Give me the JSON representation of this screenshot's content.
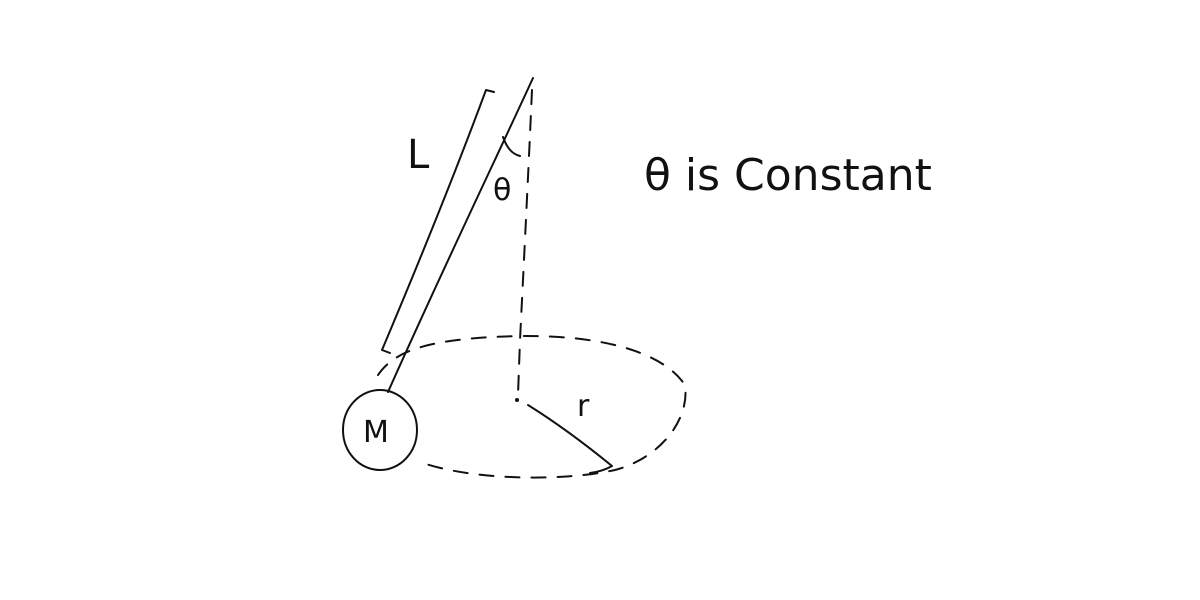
{
  "diagram": {
    "labels": {
      "length": "L",
      "angle": "θ",
      "mass": "M",
      "radius": "r",
      "note": "θ is Constant"
    },
    "colors": {
      "ink": "#111111",
      "background": "#ffffff"
    }
  }
}
